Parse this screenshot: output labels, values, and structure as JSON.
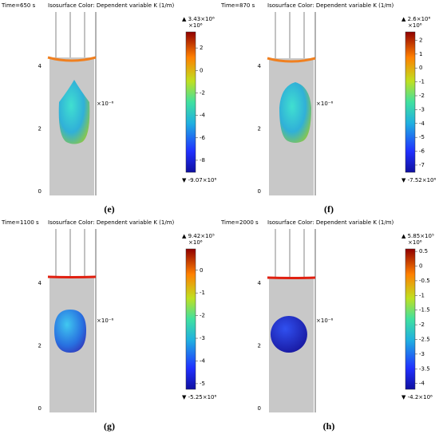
{
  "panels": [
    {
      "time": "Time=650 s",
      "title": "Isosurface Color: Dependent variable K (1/m)",
      "scale": "×10⁻⁶",
      "yticks": [
        0,
        2,
        4
      ],
      "colorbar": {
        "max_label": "▲ 3.43×10⁶",
        "multiplier": "×10⁶",
        "min_label": "▼ -9.07×10⁶",
        "range": [
          -9.07,
          3.43
        ],
        "ticks": [
          2,
          0,
          -2,
          -4,
          -6,
          -8
        ]
      },
      "caption": "(e)"
    },
    {
      "time": "Time=870 s",
      "title": "Isosurface Color: Dependent variable K (1/m)",
      "scale": "×10⁻⁶",
      "yticks": [
        0,
        2,
        4
      ],
      "colorbar": {
        "max_label": "▲ 2.6×10⁶",
        "multiplier": "×10⁶",
        "min_label": "▼ -7.52×10⁶",
        "range": [
          -7.52,
          2.6
        ],
        "ticks": [
          2,
          1,
          0,
          -1,
          -2,
          -3,
          -4,
          -5,
          -6,
          -7
        ]
      },
      "caption": "(f)"
    },
    {
      "time": "Time=1100 s",
      "title": "Isosurface Color: Dependent variable K (1/m)",
      "scale": "×10⁻⁶",
      "yticks": [
        0,
        2,
        4
      ],
      "colorbar": {
        "max_label": "▲ 9.42×10⁵",
        "multiplier": "×10⁶",
        "min_label": "▼ -5.25×10⁶",
        "range": [
          -5.25,
          0.942
        ],
        "ticks": [
          0,
          -1,
          -2,
          -3,
          -4,
          -5
        ]
      },
      "caption": "(g)"
    },
    {
      "time": "Time=2000 s",
      "title": "Isosurface Color: Dependent variable K (1/m)",
      "scale": "×10⁻⁶",
      "yticks": [
        0,
        2,
        4
      ],
      "colorbar": {
        "max_label": "▲ 5.85×10⁵",
        "multiplier": "×10⁶",
        "min_label": "▼ -4.2×10⁶",
        "range": [
          -4.2,
          0.585
        ],
        "ticks": [
          0.5,
          0,
          -0.5,
          -1,
          -1.5,
          -2,
          -2.5,
          -3,
          -3.5,
          -4
        ]
      },
      "caption": "(h)"
    }
  ]
}
